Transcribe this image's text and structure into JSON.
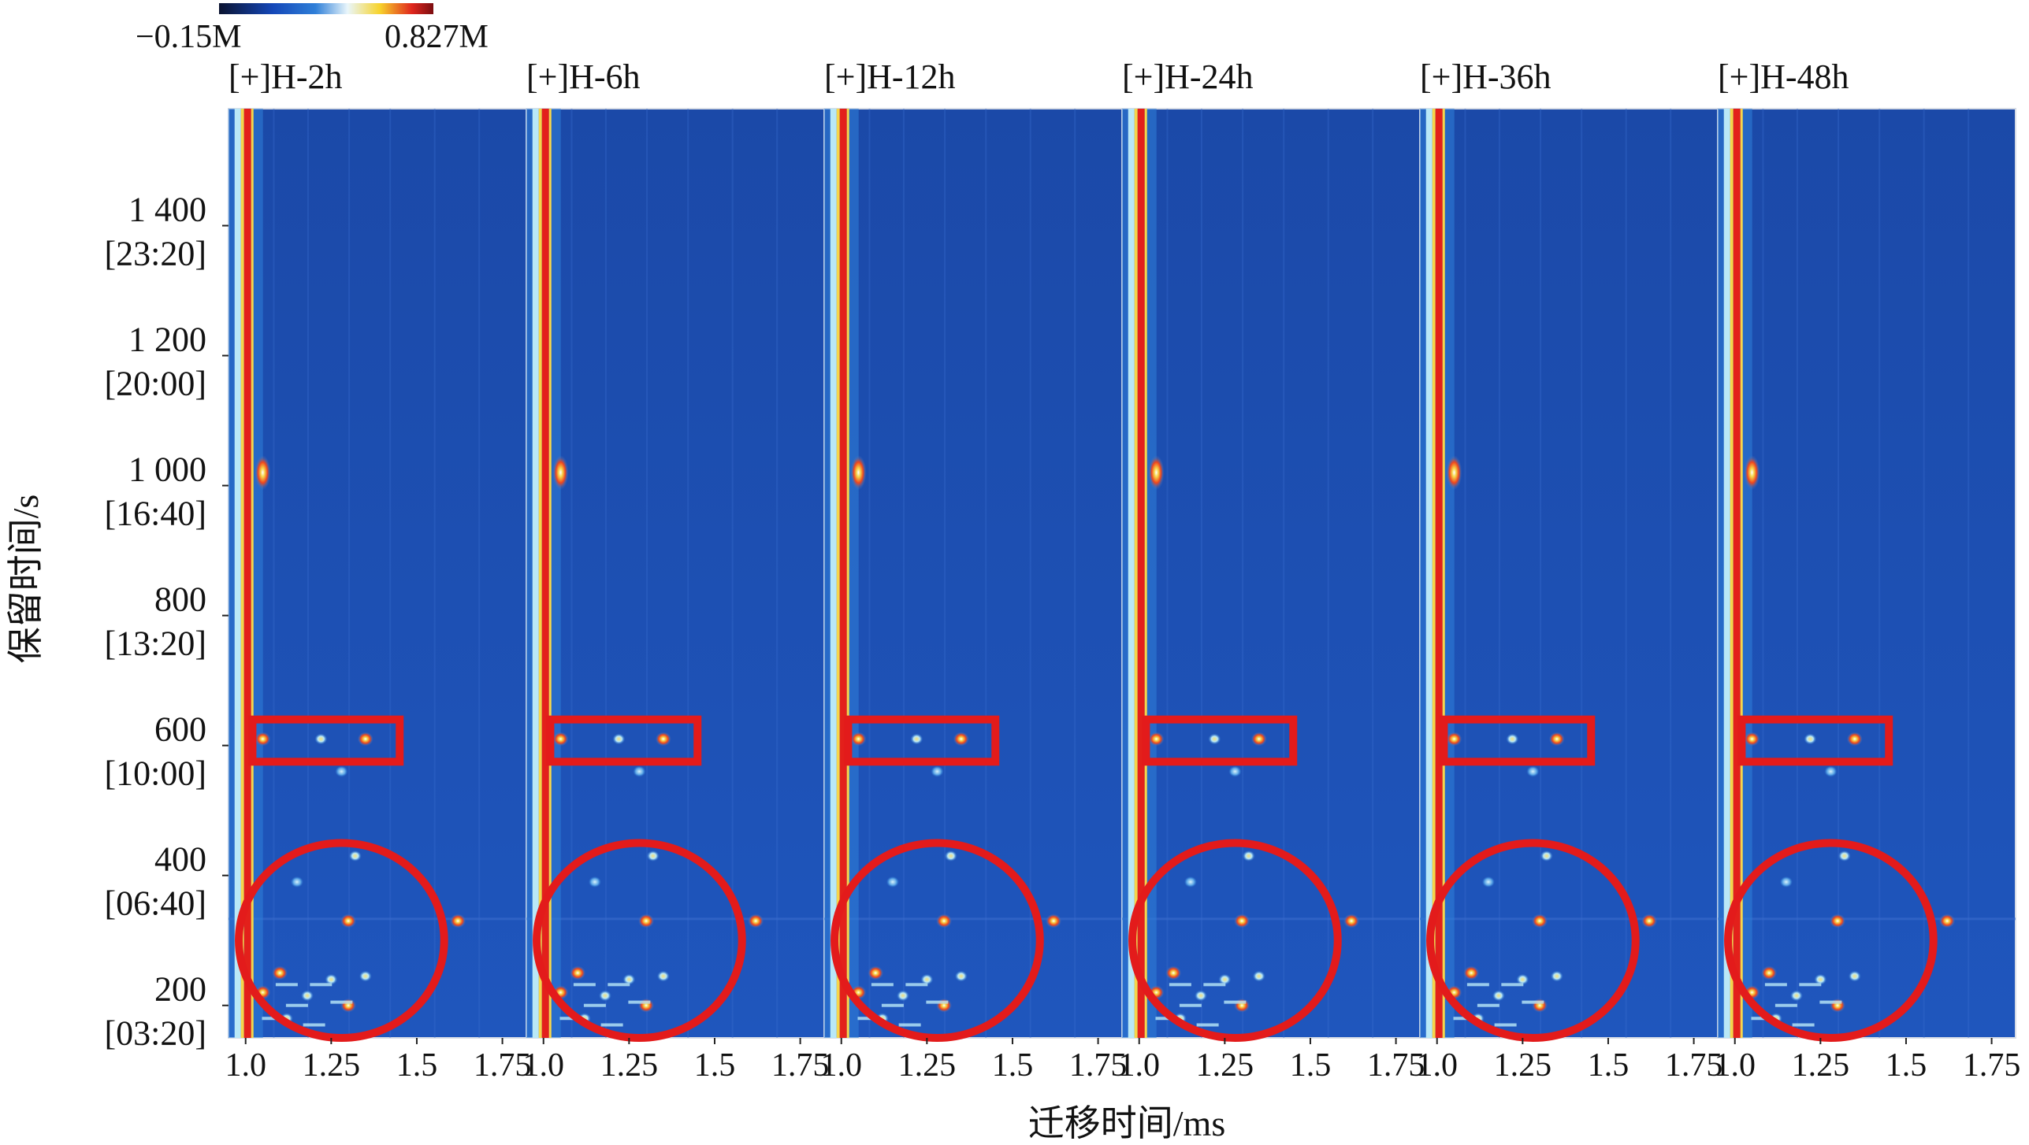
{
  "chart_data": {
    "type": "heatmap",
    "description_kind": "GC-IMS topographic spectra, six sample panels",
    "colorbar": {
      "min_label": "−0.15M",
      "max_label": "0.827M",
      "colors": [
        "#0b1330",
        "#1447b8",
        "#2f7fd8",
        "#e9f6fb",
        "#f7d32b",
        "#e0261d",
        "#7a0d10"
      ]
    },
    "xlabel": "迁移时间/ms",
    "ylabel": "保留时间/s",
    "xticks": [
      "1.0",
      "1.25",
      "1.5",
      "1.75"
    ],
    "xlim": [
      0.95,
      1.82
    ],
    "ylim": [
      150,
      1580
    ],
    "yticks": [
      {
        "value": 200,
        "label": "200",
        "sublabel": "[03:20]"
      },
      {
        "value": 400,
        "label": "400",
        "sublabel": "[06:40]"
      },
      {
        "value": 600,
        "label": "600",
        "sublabel": "[10:00]"
      },
      {
        "value": 800,
        "label": "800",
        "sublabel": "[13:20]"
      },
      {
        "value": 1000,
        "label": "1 000",
        "sublabel": "[16:40]"
      },
      {
        "value": 1200,
        "label": "1 200",
        "sublabel": "[20:00]"
      },
      {
        "value": 1400,
        "label": "1 400",
        "sublabel": "[23:20]"
      }
    ],
    "panels": [
      {
        "title": "[+]H-2h"
      },
      {
        "title": "[+]H-6h"
      },
      {
        "title": "[+]H-12h"
      },
      {
        "title": "[+]H-24h"
      },
      {
        "title": "[+]H-36h"
      },
      {
        "title": "[+]H-48h"
      }
    ],
    "colors": {
      "background": "#1c4fb3",
      "rip_line": "#e3201b",
      "highlight": "#e31b1b",
      "spot_hot": "#f0451c",
      "spot_warm": "#f6d64a",
      "spot_cool": "#b9e8f7"
    },
    "peaks": [
      {
        "x": 1.05,
        "y": 1020,
        "intensity": "high"
      },
      {
        "x": 1.05,
        "y": 610,
        "intensity": "high"
      },
      {
        "x": 1.22,
        "y": 610,
        "intensity": "medium"
      },
      {
        "x": 1.35,
        "y": 610,
        "intensity": "high"
      },
      {
        "x": 1.28,
        "y": 560,
        "intensity": "low"
      },
      {
        "x": 1.32,
        "y": 430,
        "intensity": "medium"
      },
      {
        "x": 1.15,
        "y": 390,
        "intensity": "low"
      },
      {
        "x": 1.3,
        "y": 330,
        "intensity": "high"
      },
      {
        "x": 1.62,
        "y": 330,
        "intensity": "high"
      },
      {
        "x": 1.1,
        "y": 250,
        "intensity": "high"
      },
      {
        "x": 1.25,
        "y": 240,
        "intensity": "medium"
      },
      {
        "x": 1.35,
        "y": 245,
        "intensity": "medium"
      },
      {
        "x": 1.05,
        "y": 220,
        "intensity": "high"
      },
      {
        "x": 1.18,
        "y": 215,
        "intensity": "medium"
      },
      {
        "x": 1.3,
        "y": 200,
        "intensity": "high"
      },
      {
        "x": 1.12,
        "y": 180,
        "intensity": "medium"
      }
    ],
    "highlights": [
      {
        "shape": "rectangle",
        "x_range": [
          1.02,
          1.45
        ],
        "y_range": [
          575,
          640
        ]
      },
      {
        "shape": "ellipse",
        "cx": 1.28,
        "cy": 300,
        "rx": 0.3,
        "ry": 150
      }
    ]
  }
}
